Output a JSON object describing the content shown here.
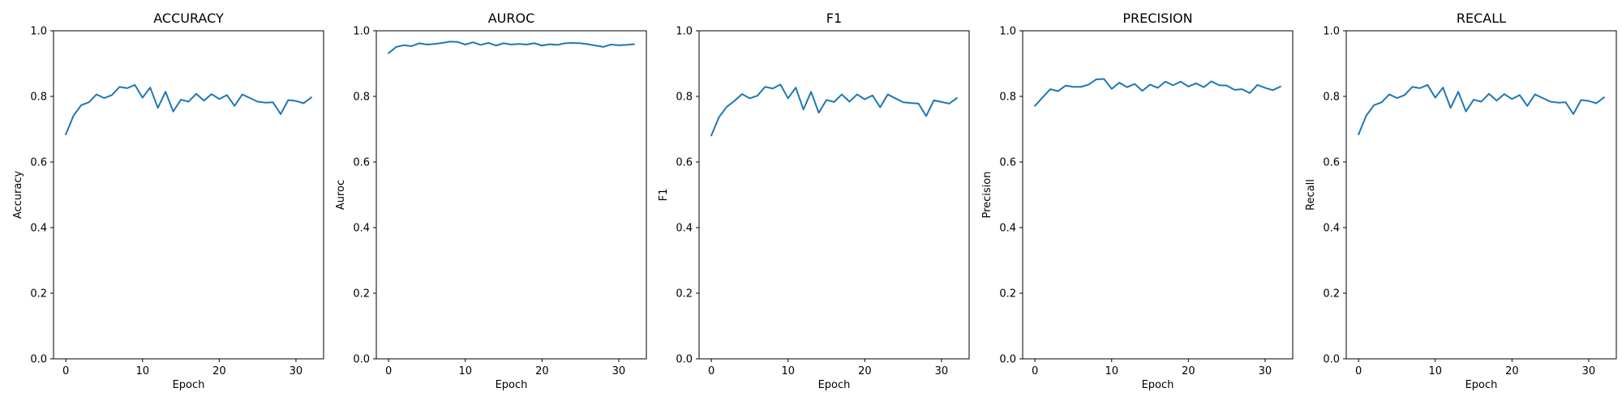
{
  "chart_data": [
    {
      "type": "line",
      "title": "ACCURACY",
      "xlabel": "Epoch",
      "ylabel": "Accuracy",
      "xlim": [
        -1.6,
        33.6
      ],
      "ylim": [
        0.0,
        1.0
      ],
      "xticks": [
        0,
        10,
        20,
        30
      ],
      "xtick_labels": [
        "0",
        "10",
        "20",
        "30"
      ],
      "yticks": [
        0.0,
        0.2,
        0.4,
        0.6,
        0.8,
        1.0
      ],
      "ytick_labels": [
        "0.0",
        "0.2",
        "0.4",
        "0.6",
        "0.8",
        "1.0"
      ],
      "grid": false,
      "line_color": "#1f77b4",
      "x": [
        0,
        1,
        2,
        3,
        4,
        5,
        6,
        7,
        8,
        9,
        10,
        11,
        12,
        13,
        14,
        15,
        16,
        17,
        18,
        19,
        20,
        21,
        22,
        23,
        24,
        25,
        26,
        27,
        28,
        29,
        30,
        31,
        32
      ],
      "values": [
        0.684,
        0.741,
        0.773,
        0.782,
        0.806,
        0.795,
        0.804,
        0.829,
        0.825,
        0.835,
        0.796,
        0.827,
        0.765,
        0.814,
        0.754,
        0.79,
        0.784,
        0.808,
        0.787,
        0.807,
        0.792,
        0.804,
        0.771,
        0.806,
        0.795,
        0.784,
        0.781,
        0.782,
        0.746,
        0.789,
        0.786,
        0.779,
        0.797
      ]
    },
    {
      "type": "line",
      "title": "AUROC",
      "xlabel": "Epoch",
      "ylabel": "Auroc",
      "xlim": [
        -1.6,
        33.6
      ],
      "ylim": [
        0.0,
        1.0
      ],
      "xticks": [
        0,
        10,
        20,
        30
      ],
      "xtick_labels": [
        "0",
        "10",
        "20",
        "30"
      ],
      "yticks": [
        0.0,
        0.2,
        0.4,
        0.6,
        0.8,
        1.0
      ],
      "ytick_labels": [
        "0.0",
        "0.2",
        "0.4",
        "0.6",
        "0.8",
        "1.0"
      ],
      "grid": false,
      "line_color": "#1f77b4",
      "x": [
        0,
        1,
        2,
        3,
        4,
        5,
        6,
        7,
        8,
        9,
        10,
        11,
        12,
        13,
        14,
        15,
        16,
        17,
        18,
        19,
        20,
        21,
        22,
        23,
        24,
        25,
        26,
        27,
        28,
        29,
        30,
        31,
        32
      ],
      "values": [
        0.932,
        0.951,
        0.956,
        0.953,
        0.962,
        0.958,
        0.96,
        0.963,
        0.967,
        0.966,
        0.958,
        0.965,
        0.957,
        0.963,
        0.955,
        0.962,
        0.958,
        0.96,
        0.958,
        0.962,
        0.955,
        0.959,
        0.957,
        0.962,
        0.963,
        0.962,
        0.959,
        0.955,
        0.951,
        0.958,
        0.956,
        0.957,
        0.959
      ]
    },
    {
      "type": "line",
      "title": "F1",
      "xlabel": "Epoch",
      "ylabel": "F1",
      "xlim": [
        -1.6,
        33.6
      ],
      "ylim": [
        0.0,
        1.0
      ],
      "xticks": [
        0,
        10,
        20,
        30
      ],
      "xtick_labels": [
        "0",
        "10",
        "20",
        "30"
      ],
      "yticks": [
        0.0,
        0.2,
        0.4,
        0.6,
        0.8,
        1.0
      ],
      "ytick_labels": [
        "0.0",
        "0.2",
        "0.4",
        "0.6",
        "0.8",
        "1.0"
      ],
      "grid": false,
      "line_color": "#1f77b4",
      "x": [
        0,
        1,
        2,
        3,
        4,
        5,
        6,
        7,
        8,
        9,
        10,
        11,
        12,
        13,
        14,
        15,
        16,
        17,
        18,
        19,
        20,
        21,
        22,
        23,
        24,
        25,
        26,
        27,
        28,
        29,
        30,
        31,
        32
      ],
      "values": [
        0.681,
        0.737,
        0.768,
        0.786,
        0.807,
        0.794,
        0.802,
        0.829,
        0.824,
        0.836,
        0.794,
        0.827,
        0.76,
        0.814,
        0.75,
        0.789,
        0.783,
        0.806,
        0.784,
        0.806,
        0.791,
        0.803,
        0.767,
        0.806,
        0.794,
        0.782,
        0.78,
        0.778,
        0.74,
        0.788,
        0.783,
        0.778,
        0.795
      ]
    },
    {
      "type": "line",
      "title": "PRECISION",
      "xlabel": "Epoch",
      "ylabel": "Precision",
      "xlim": [
        -1.6,
        33.6
      ],
      "ylim": [
        0.0,
        1.0
      ],
      "xticks": [
        0,
        10,
        20,
        30
      ],
      "xtick_labels": [
        "0",
        "10",
        "20",
        "30"
      ],
      "yticks": [
        0.0,
        0.2,
        0.4,
        0.6,
        0.8,
        1.0
      ],
      "ytick_labels": [
        "0.0",
        "0.2",
        "0.4",
        "0.6",
        "0.8",
        "1.0"
      ],
      "grid": false,
      "line_color": "#1f77b4",
      "x": [
        0,
        1,
        2,
        3,
        4,
        5,
        6,
        7,
        8,
        9,
        10,
        11,
        12,
        13,
        14,
        15,
        16,
        17,
        18,
        19,
        20,
        21,
        22,
        23,
        24,
        25,
        26,
        27,
        28,
        29,
        30,
        31,
        32
      ],
      "values": [
        0.771,
        0.797,
        0.822,
        0.816,
        0.833,
        0.829,
        0.829,
        0.836,
        0.852,
        0.853,
        0.823,
        0.842,
        0.828,
        0.838,
        0.817,
        0.836,
        0.826,
        0.845,
        0.834,
        0.845,
        0.83,
        0.84,
        0.828,
        0.846,
        0.834,
        0.833,
        0.82,
        0.822,
        0.81,
        0.835,
        0.826,
        0.819,
        0.83
      ]
    },
    {
      "type": "line",
      "title": "RECALL",
      "xlabel": "Epoch",
      "ylabel": "Recall",
      "xlim": [
        -1.6,
        33.6
      ],
      "ylim": [
        0.0,
        1.0
      ],
      "xticks": [
        0,
        10,
        20,
        30
      ],
      "xtick_labels": [
        "0",
        "10",
        "20",
        "30"
      ],
      "yticks": [
        0.0,
        0.2,
        0.4,
        0.6,
        0.8,
        1.0
      ],
      "ytick_labels": [
        "0.0",
        "0.2",
        "0.4",
        "0.6",
        "0.8",
        "1.0"
      ],
      "grid": false,
      "line_color": "#1f77b4",
      "x": [
        0,
        1,
        2,
        3,
        4,
        5,
        6,
        7,
        8,
        9,
        10,
        11,
        12,
        13,
        14,
        15,
        16,
        17,
        18,
        19,
        20,
        21,
        22,
        23,
        24,
        25,
        26,
        27,
        28,
        29,
        30,
        31,
        32
      ],
      "values": [
        0.684,
        0.741,
        0.773,
        0.782,
        0.806,
        0.795,
        0.804,
        0.829,
        0.825,
        0.835,
        0.796,
        0.827,
        0.765,
        0.814,
        0.754,
        0.79,
        0.784,
        0.808,
        0.787,
        0.807,
        0.792,
        0.804,
        0.771,
        0.806,
        0.795,
        0.784,
        0.781,
        0.782,
        0.746,
        0.789,
        0.786,
        0.779,
        0.797
      ]
    }
  ]
}
